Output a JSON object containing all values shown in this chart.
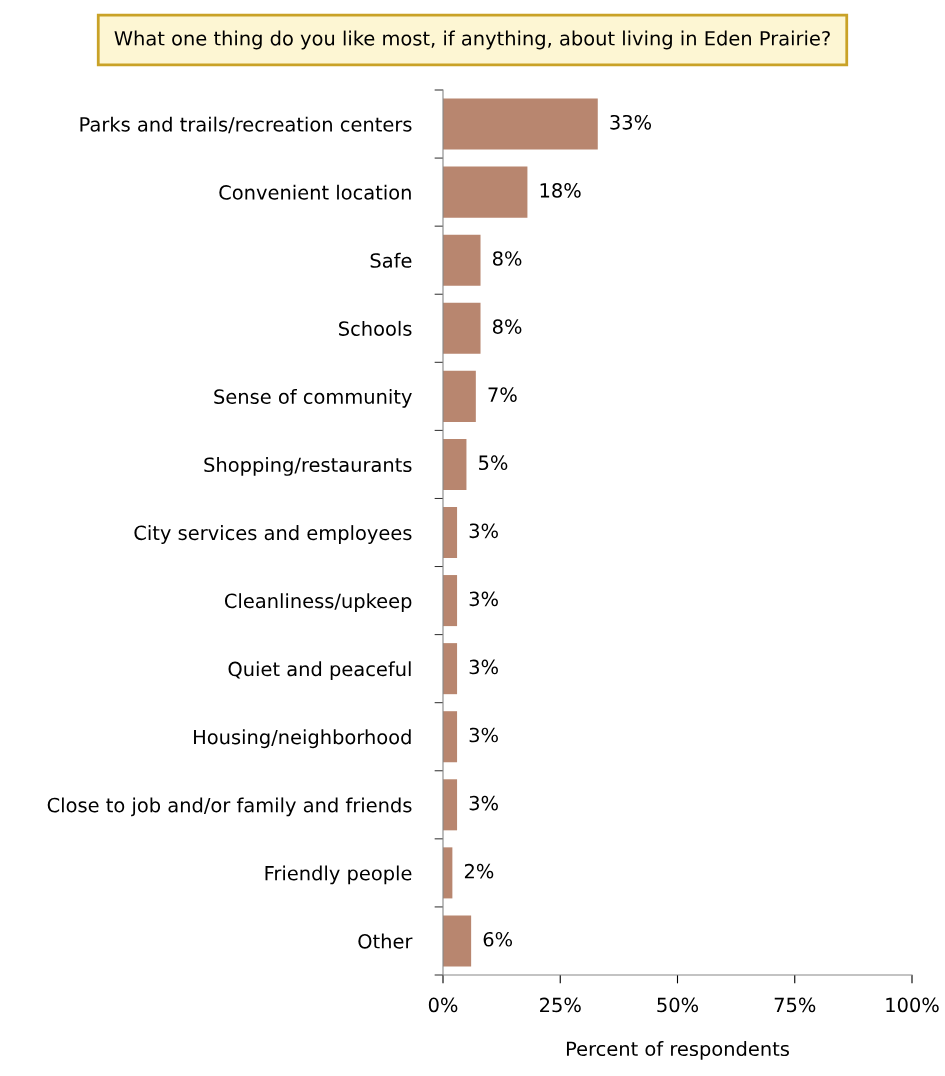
{
  "chart_data": {
    "type": "bar",
    "orientation": "horizontal",
    "title": "What one thing do you like most, if anything, about living in Eden Prairie?",
    "xlabel": "Percent of respondents",
    "categories": [
      "Parks and trails/recreation centers",
      "Convenient location",
      "Safe",
      "Schools",
      "Sense of community",
      "Shopping/restaurants",
      "City services and employees",
      "Cleanliness/upkeep",
      "Quiet and peaceful",
      "Housing/neighborhood",
      "Close to job and/or family and friends",
      "Friendly people",
      "Other"
    ],
    "values": [
      33,
      18,
      8,
      8,
      7,
      5,
      3,
      3,
      3,
      3,
      3,
      2,
      6
    ],
    "value_labels": [
      "33%",
      "18%",
      "8%",
      "8%",
      "7%",
      "5%",
      "3%",
      "3%",
      "3%",
      "3%",
      "3%",
      "2%",
      "6%"
    ],
    "color": "#b8866f",
    "xlim": [
      0,
      100
    ],
    "xticks": [
      {
        "value": 0,
        "label": "0%"
      },
      {
        "value": 25,
        "label": "25%"
      },
      {
        "value": 50,
        "label": "50%"
      },
      {
        "value": 75,
        "label": "75%"
      },
      {
        "value": 100,
        "label": "100%"
      }
    ],
    "grid": false,
    "legend": false
  }
}
